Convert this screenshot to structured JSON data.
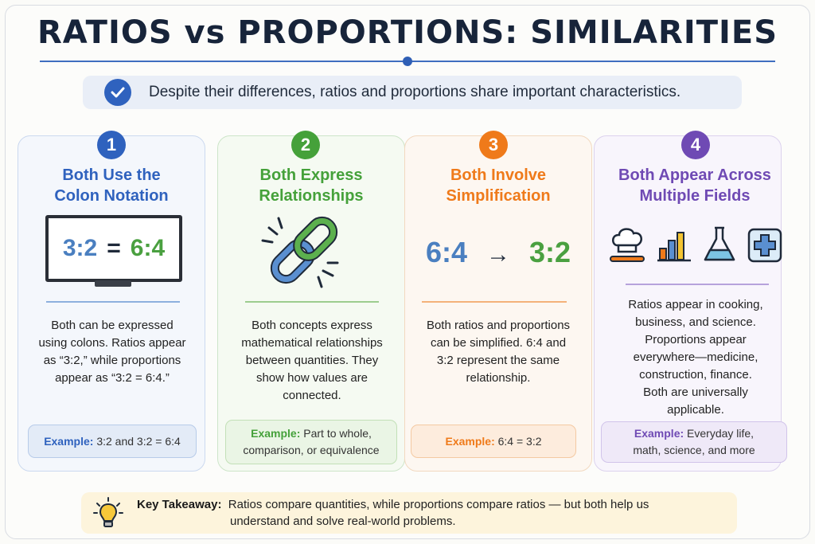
{
  "title": "RATIOS vs PROPORTIONS: SIMILARITIES",
  "intro": "Despite their differences, ratios and proportions share important characteristics.",
  "cards": [
    {
      "number": "1",
      "heading_line1": "Both Use the",
      "heading_line2": "Colon Notation",
      "visual": {
        "left": "3:2",
        "eq": "=",
        "right": "6:4"
      },
      "body_lines": [
        "Both can be expressed",
        "using colons. Ratios appear",
        "as “3:2,” while proportions",
        "appear as “3:2 = 6:4.”"
      ],
      "example_label": "Example:",
      "example_text": "3:2 and 3:2 = 6:4",
      "color": "#2f62be"
    },
    {
      "number": "2",
      "heading_line1": "Both Express",
      "heading_line2": "Relationships",
      "visual_icon": "chain-link-icon",
      "body_lines": [
        "Both concepts express",
        "mathematical relationships",
        "between quantities. They",
        "show how values are",
        "connected."
      ],
      "example_label": "Example:",
      "example_line1": "Part to whole,",
      "example_line2": "comparison, or equivalence",
      "color": "#45a13a"
    },
    {
      "number": "3",
      "heading_line1": "Both Involve",
      "heading_line2": "Simplification",
      "visual": {
        "left": "6:4",
        "arrow": "→",
        "right": "3:2"
      },
      "body_lines": [
        "Both ratios and proportions",
        "can be simplified. 6:4 and",
        "3:2 represent the same",
        "relationship."
      ],
      "example_label": "Example:",
      "example_text": "6:4 = 3:2",
      "color": "#ef7a1a"
    },
    {
      "number": "4",
      "heading_line1": "Both Appear Across",
      "heading_line2": "Multiple Fields",
      "visual_icons": [
        "chef-hat-icon",
        "bar-chart-icon",
        "flask-icon",
        "medical-cross-icon"
      ],
      "body_lines": [
        "Ratios appear in cooking,",
        "business, and science.",
        "Proportions appear",
        "everywhere—medicine,",
        "construction, finance.",
        "Both are universally",
        "applicable."
      ],
      "example_label": "Example:",
      "example_line1": "Everyday life,",
      "example_line2": "math, science, and more",
      "color": "#6f4ab4"
    }
  ],
  "takeaway": {
    "label": "Key Takeaway:",
    "line1": "Ratios compare quantities, while proportions compare ratios — but both help us",
    "line2": "understand and solve real-world problems.",
    "icon": "lightbulb-icon"
  }
}
